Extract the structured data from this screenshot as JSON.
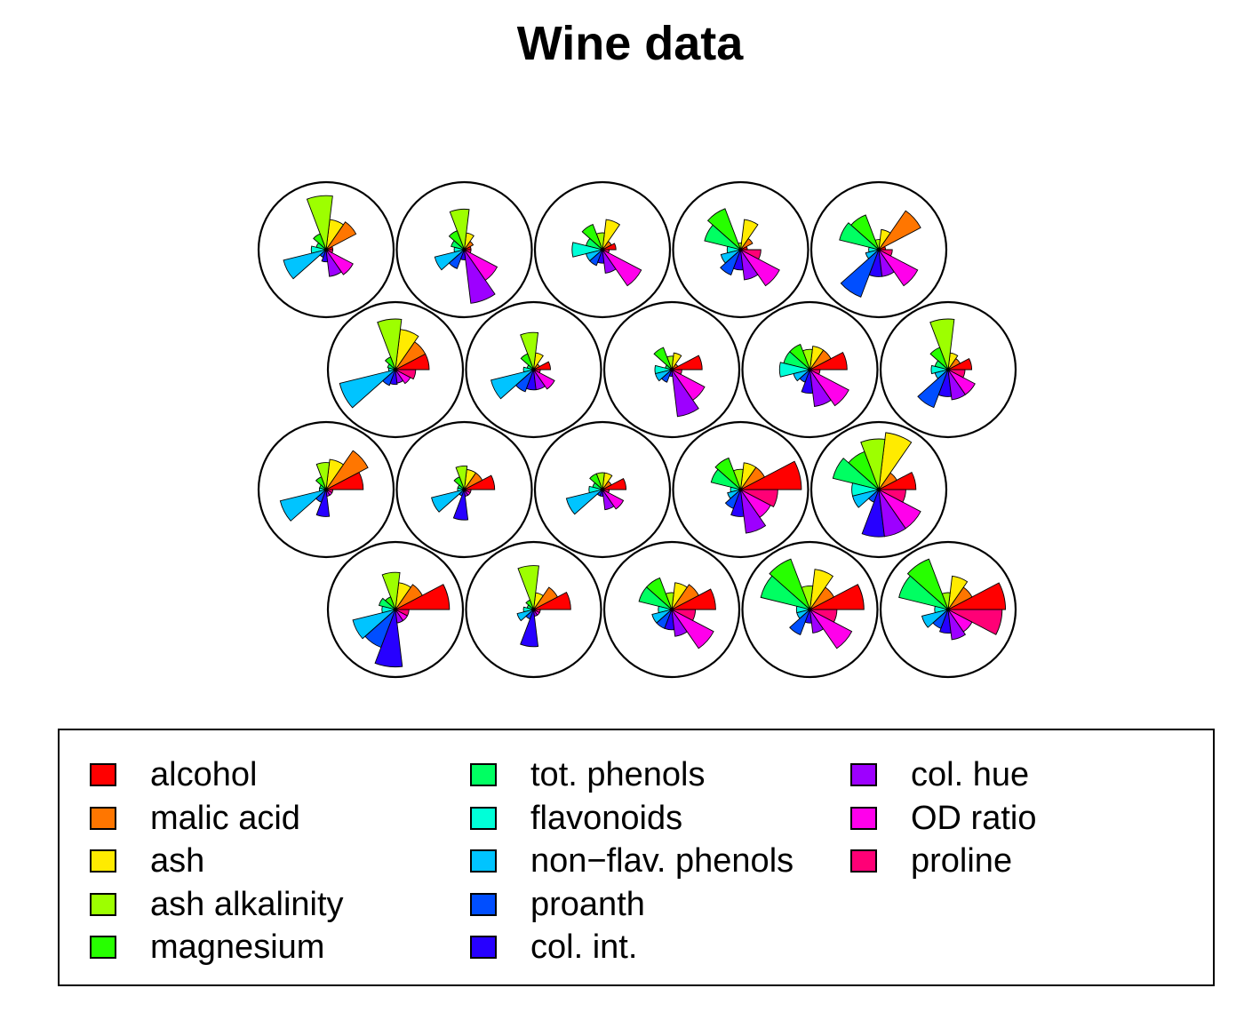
{
  "title": "Wine data",
  "chart_data": {
    "type": "segment-star",
    "title": "Wine data",
    "variables": [
      "alcohol",
      "malic acid",
      "ash",
      "ash alkalinity",
      "magnesium",
      "tot. phenols",
      "flavonoids",
      "non−flav. phenols",
      "proanth",
      "col. int.",
      "col. hue",
      "OD ratio",
      "proline"
    ],
    "colors": [
      "#FF0000",
      "#FF7600",
      "#FFEB00",
      "#9DFF00",
      "#27FF00",
      "#00FF62",
      "#00FFD8",
      "#00C4FF",
      "#004EFF",
      "#2700FF",
      "#9D00FF",
      "#FF00EB",
      "#FF0076"
    ],
    "grid": false,
    "legend_position": "bottom",
    "legend_columns": 3,
    "stars": [
      {
        "values": [
          0.1,
          0.5,
          0.45,
          0.8,
          0.25,
          0.15,
          0.22,
          0.65,
          0.12,
          0.18,
          0.4,
          0.45,
          0.1
        ]
      },
      {
        "values": [
          0.1,
          0.15,
          0.25,
          0.6,
          0.3,
          0.2,
          0.15,
          0.45,
          0.3,
          0.15,
          0.8,
          0.55,
          0.1
        ]
      },
      {
        "values": [
          0.2,
          0.15,
          0.45,
          0.25,
          0.4,
          0.25,
          0.45,
          0.25,
          0.25,
          0.2,
          0.35,
          0.65,
          0.1
        ]
      },
      {
        "values": [
          0.1,
          0.2,
          0.45,
          0.1,
          0.65,
          0.55,
          0.2,
          0.3,
          0.4,
          0.3,
          0.45,
          0.65,
          0.3
        ]
      },
      {
        "values": [
          0.1,
          0.7,
          0.3,
          0.15,
          0.55,
          0.6,
          0.15,
          0.2,
          0.75,
          0.4,
          0.4,
          0.65,
          0.2
        ]
      },
      {
        "values": [
          0.5,
          0.5,
          0.6,
          0.75,
          0.2,
          0.12,
          0.1,
          0.85,
          0.25,
          0.22,
          0.2,
          0.25,
          0.3
        ]
      },
      {
        "values": [
          0.25,
          0.1,
          0.25,
          0.55,
          0.25,
          0.1,
          0.15,
          0.65,
          0.35,
          0.3,
          0.3,
          0.35,
          0.1
        ]
      },
      {
        "values": [
          0.45,
          0.1,
          0.25,
          0.2,
          0.35,
          0.1,
          0.25,
          0.25,
          0.2,
          0.1,
          0.7,
          0.55,
          0.15
        ]
      },
      {
        "values": [
          0.55,
          0.35,
          0.35,
          0.3,
          0.4,
          0.4,
          0.45,
          0.25,
          0.2,
          0.35,
          0.55,
          0.65,
          0.15
        ]
      },
      {
        "values": [
          0.35,
          0.2,
          0.25,
          0.75,
          0.35,
          0.2,
          0.25,
          0.2,
          0.6,
          0.4,
          0.45,
          0.45,
          0.25
        ]
      },
      {
        "values": [
          0.55,
          0.7,
          0.45,
          0.4,
          0.2,
          0.1,
          0.1,
          0.7,
          0.2,
          0.4,
          0.1,
          0.1,
          0.1
        ]
      },
      {
        "values": [
          0.45,
          0.3,
          0.3,
          0.35,
          0.2,
          0.1,
          0.1,
          0.5,
          0.1,
          0.45,
          0.1,
          0.1,
          0.1
        ]
      },
      {
        "values": [
          0.35,
          0.15,
          0.25,
          0.25,
          0.25,
          0.15,
          0.2,
          0.55,
          0.1,
          0.1,
          0.3,
          0.35,
          0.1
        ]
      },
      {
        "values": [
          0.9,
          0.4,
          0.4,
          0.3,
          0.5,
          0.45,
          0.15,
          0.2,
          0.3,
          0.4,
          0.65,
          0.5,
          0.55
        ]
      },
      {
        "values": [
          0.55,
          0.3,
          0.85,
          0.75,
          0.6,
          0.7,
          0.4,
          0.4,
          0.2,
          0.7,
          0.7,
          0.7,
          0.4
        ]
      },
      {
        "values": [
          0.8,
          0.45,
          0.4,
          0.55,
          0.2,
          0.25,
          0.2,
          0.65,
          0.6,
          0.85,
          0.2,
          0.2,
          0.2
        ]
      },
      {
        "values": [
          0.55,
          0.4,
          0.25,
          0.65,
          0.15,
          0.1,
          0.15,
          0.25,
          0.15,
          0.55,
          0.1,
          0.1,
          0.1
        ]
      },
      {
        "values": [
          0.65,
          0.45,
          0.4,
          0.25,
          0.5,
          0.5,
          0.2,
          0.3,
          0.3,
          0.3,
          0.4,
          0.7,
          0.35
        ]
      },
      {
        "values": [
          0.8,
          0.4,
          0.6,
          0.35,
          0.8,
          0.75,
          0.2,
          0.2,
          0.4,
          0.2,
          0.35,
          0.7,
          0.4
        ]
      },
      {
        "values": [
          0.85,
          0.4,
          0.5,
          0.25,
          0.8,
          0.75,
          0.2,
          0.4,
          0.3,
          0.35,
          0.45,
          0.4,
          0.8
        ]
      }
    ]
  }
}
